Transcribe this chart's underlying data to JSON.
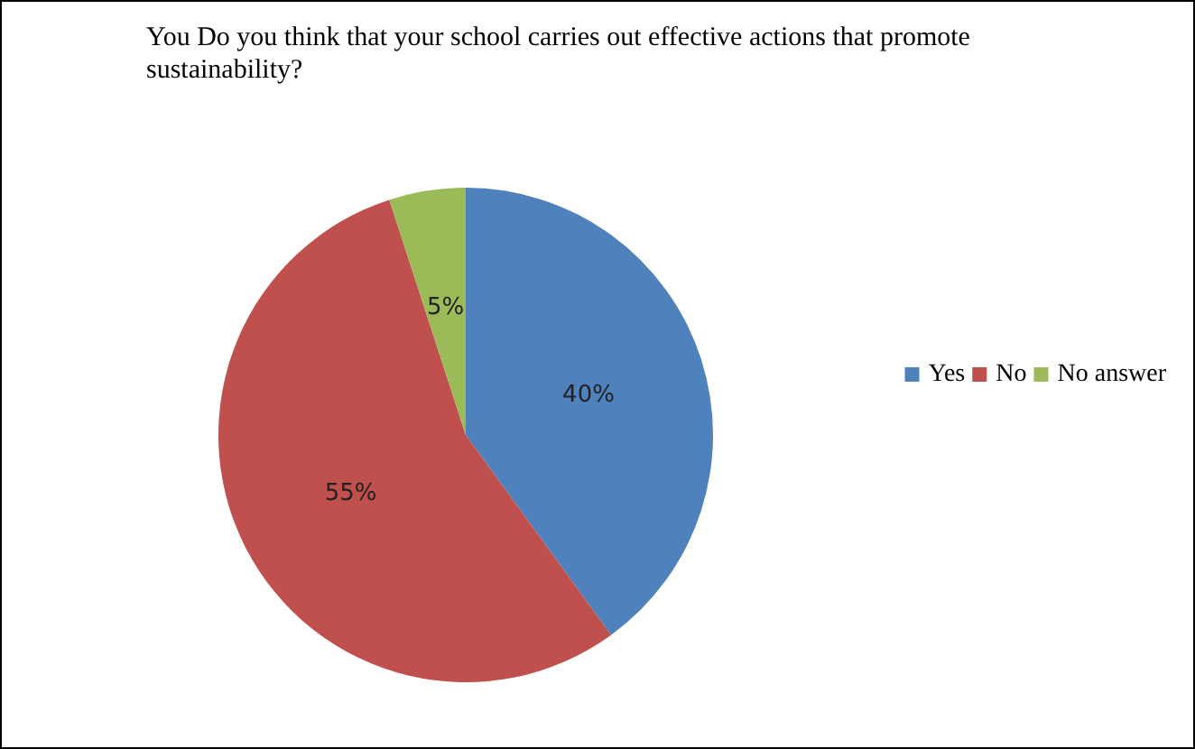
{
  "chart_data": {
    "type": "pie",
    "title": "You Do you think that your school carries out effective actions that promote sustainability?",
    "categories": [
      "Yes",
      "No",
      "No answer"
    ],
    "values": [
      40,
      55,
      5
    ],
    "colors": [
      "#4f81bd",
      "#c0504d",
      "#9bbb59"
    ],
    "value_labels": [
      "40%",
      "55%",
      "5%"
    ],
    "legend": "right"
  }
}
